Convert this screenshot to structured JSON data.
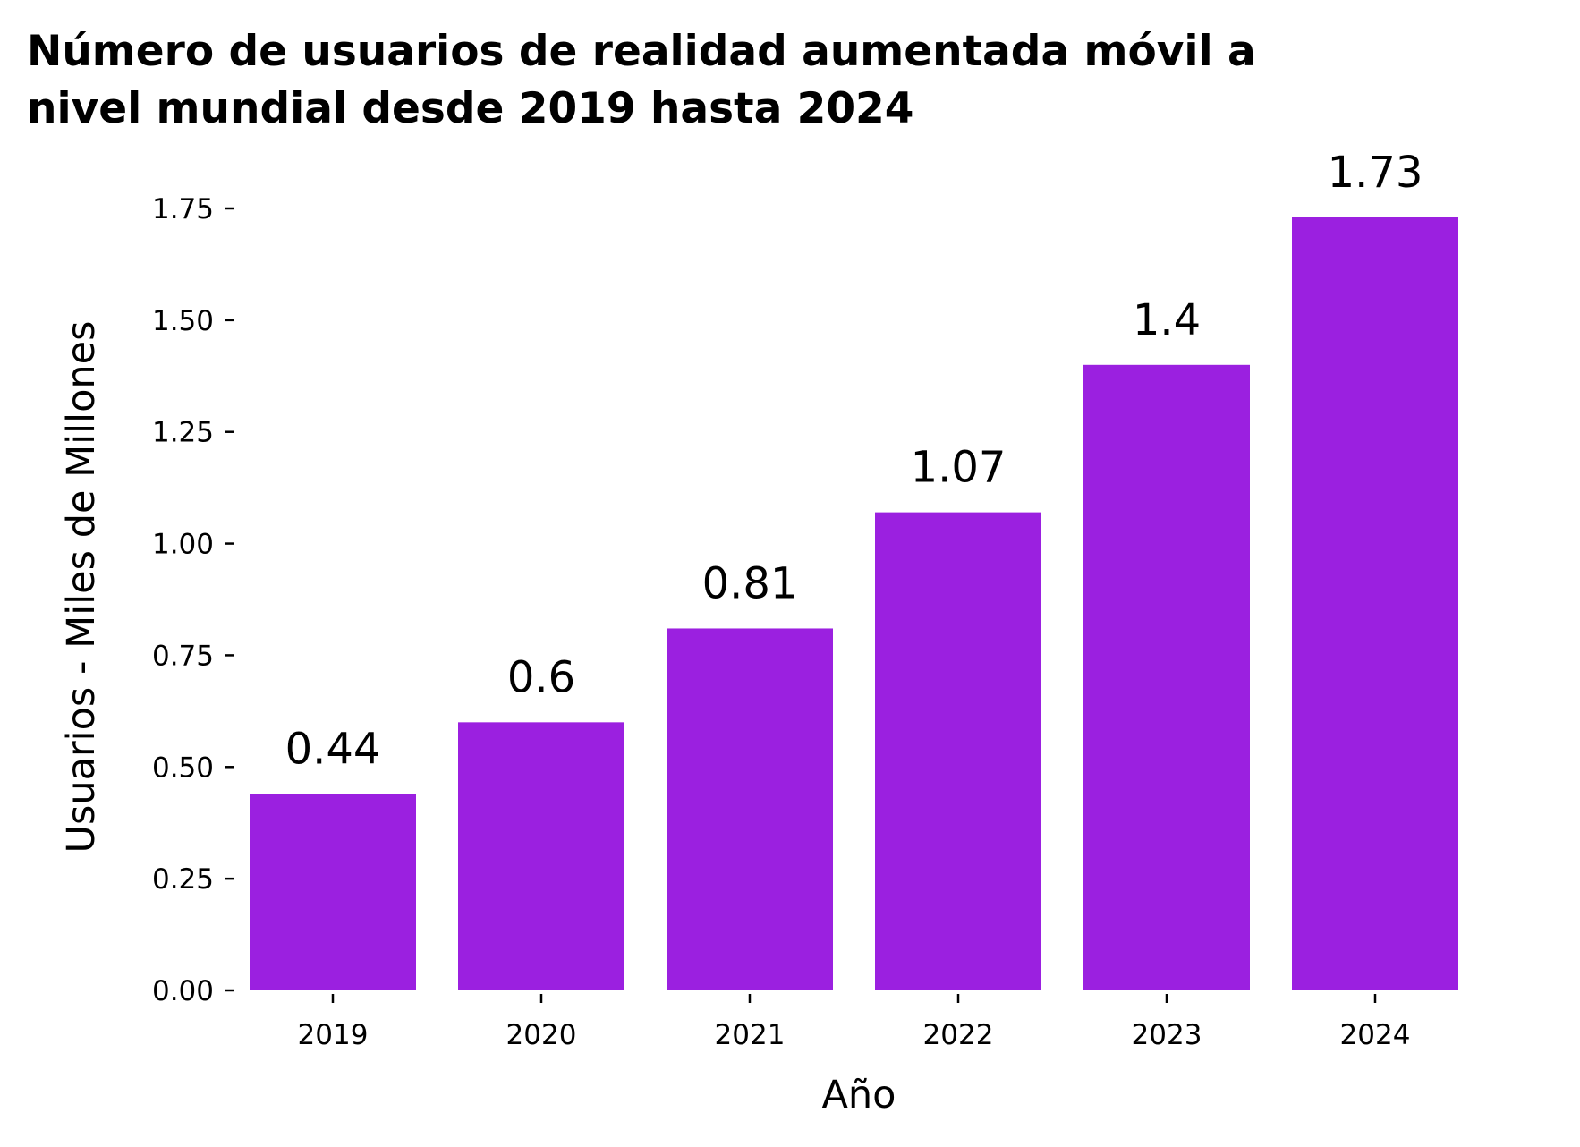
{
  "chart_data": {
    "type": "bar",
    "title_lines": [
      "Número de usuarios de realidad aumentada móvil a",
      "nivel mundial desde 2019 hasta 2024"
    ],
    "xlabel": "Año",
    "ylabel": "Usuarios - Miles de Millones",
    "categories": [
      "2019",
      "2020",
      "2021",
      "2022",
      "2023",
      "2024"
    ],
    "values": [
      0.44,
      0.6,
      0.81,
      1.07,
      1.4,
      1.73
    ],
    "value_labels": [
      "0.44",
      "0.6",
      "0.81",
      "1.07",
      "1.4",
      "1.73"
    ],
    "yticks": [
      "0.00",
      "0.25",
      "0.50",
      "0.75",
      "1.00",
      "1.25",
      "1.50",
      "1.75"
    ],
    "ylim": [
      0,
      1.75
    ],
    "bar_color": "#9b20e0",
    "grid": false,
    "legend": "none"
  }
}
